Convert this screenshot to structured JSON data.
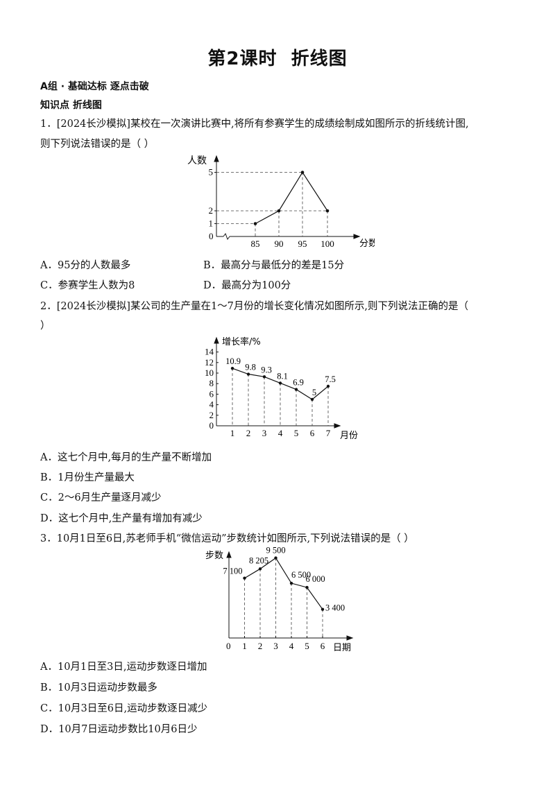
{
  "title": {
    "lesson": "第2课时",
    "topic": "折线图"
  },
  "group_heading": "A组 · 基础达标  逐点击破",
  "knowledge_point": "知识点  折线图",
  "q1": {
    "stem_line1": "1．[2024长沙模拟]某校在一次演讲比赛中,将所有参赛学生的成绩绘制成如图所示的折线统计图,",
    "stem_line2": "则下列说法错误的是（     ）",
    "options": {
      "A": "A．95分的人数最多",
      "B": "B．最高分与最低分的差是15分",
      "C": "C．参赛学生人数为8",
      "D": "D．最高分为100分"
    }
  },
  "q2": {
    "stem_line1": "2．[2024长沙模拟]某公司的生产量在1～7月份的增长变化情况如图所示,则下列说法正确的是（",
    "stem_line2": "）",
    "options": {
      "A": "A．这七个月中,每月的生产量不断增加",
      "B": "B．1月份生产量最大",
      "C": "C．2～6月生产量逐月减少",
      "D": "D．这七个月中,生产量有增加有减少"
    }
  },
  "q3": {
    "stem_line1": "3．10月1日至6日,苏老师手机“微信运动”步数统计如图所示,下列说法错误的是（     ）",
    "options": {
      "A": "A．10月1日至3日,运动步数逐日增加",
      "B": "B．10月3日运动步数最多",
      "C": "C．10月3日至6日,运动步数逐日减少",
      "D": "D．10月7日运动步数比10月6日少"
    }
  },
  "chart_data": [
    {
      "type": "line",
      "ylabel": "人数",
      "xlabel": "分数",
      "origin_label": "0",
      "x": [
        "85",
        "90",
        "95",
        "100"
      ],
      "y_ticks": [
        "1",
        "2",
        "5"
      ],
      "values": [
        1,
        2,
        5,
        2
      ]
    },
    {
      "type": "line",
      "ylabel": "增长率/%",
      "xlabel": "月份",
      "x": [
        "1",
        "2",
        "3",
        "4",
        "5",
        "6",
        "7"
      ],
      "y_ticks": [
        "0",
        "2",
        "4",
        "6",
        "8",
        "10",
        "12",
        "14"
      ],
      "values": [
        10.9,
        9.8,
        9.3,
        8.1,
        6.9,
        5,
        7.5
      ],
      "data_labels": [
        "10.9",
        "9.8",
        "9.3",
        "8.1",
        "6.9",
        "5",
        "7.5"
      ],
      "ylim": [
        0,
        14
      ]
    },
    {
      "type": "line",
      "ylabel": "步数",
      "xlabel": "日期",
      "origin_label": "0",
      "x": [
        "1",
        "2",
        "3",
        "4",
        "5",
        "6"
      ],
      "values": [
        7100,
        8205,
        9500,
        6500,
        6000,
        3400
      ],
      "data_labels": [
        "7 100",
        "8 205",
        "9 500",
        "6 500",
        "6 000",
        "3 400"
      ]
    }
  ]
}
